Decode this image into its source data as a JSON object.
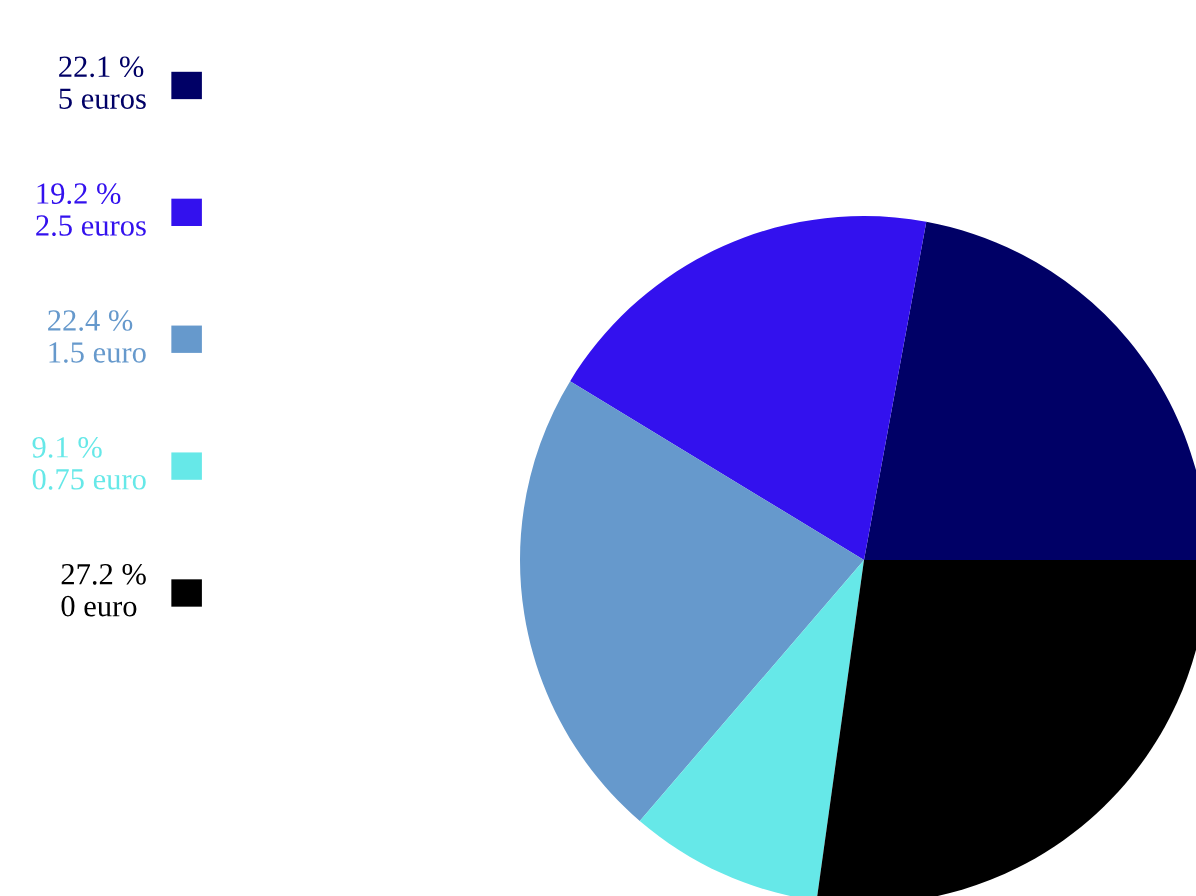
{
  "chart_data": {
    "type": "pie",
    "categories": [
      "5 euros",
      "2.5 euros",
      "1.5 euro",
      "0.75 euro",
      "0 euro"
    ],
    "values": [
      22.1,
      19.2,
      22.4,
      9.1,
      27.2
    ],
    "value_labels": [
      "22.1 %",
      "19.2 %",
      "22.4 %",
      "9.1 %",
      "27.2 %"
    ],
    "colors": [
      "#000066",
      "#3311ee",
      "#6699cc",
      "#66e8e8",
      "#000000"
    ],
    "legend": "left"
  }
}
